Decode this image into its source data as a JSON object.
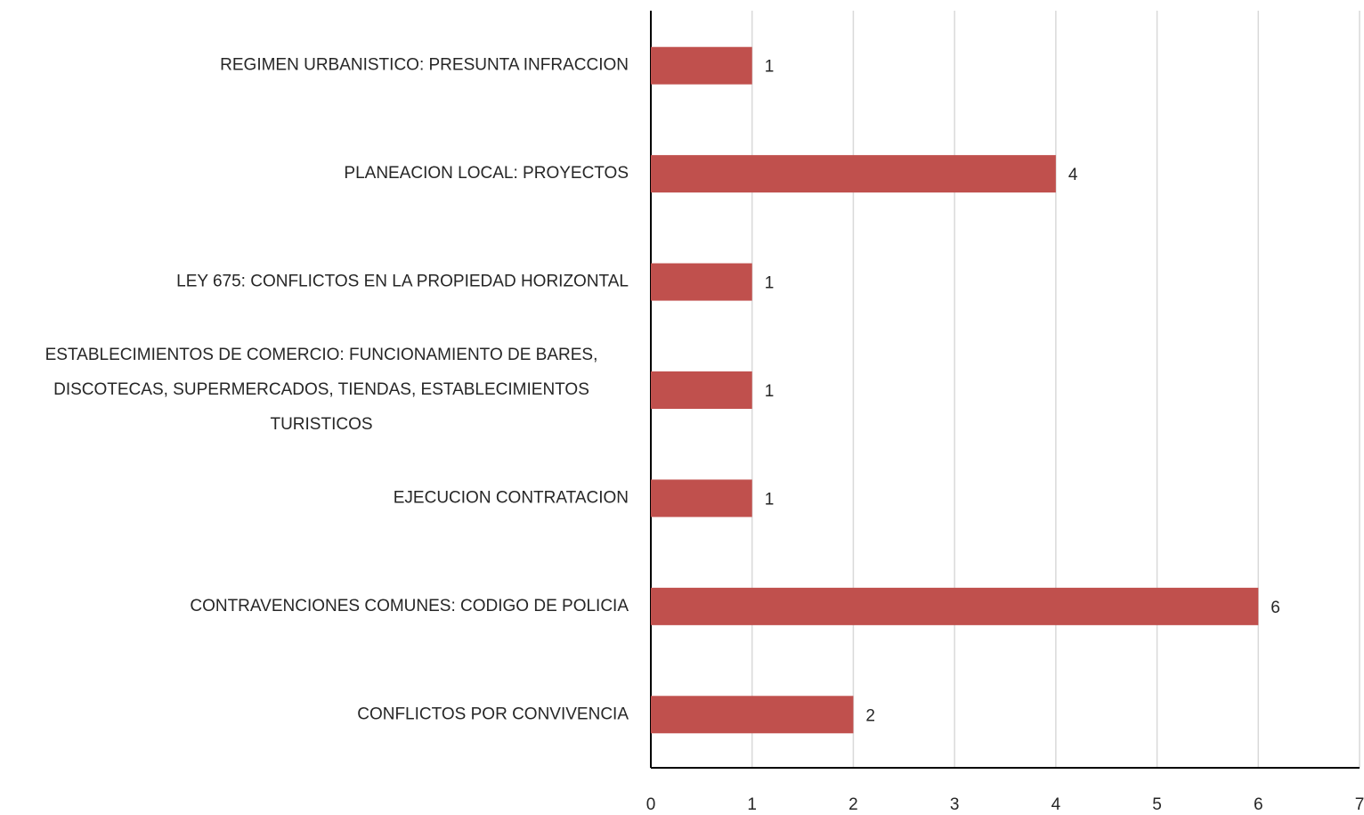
{
  "chart_data": {
    "type": "bar",
    "orientation": "horizontal",
    "categories": [
      "REGIMEN URBANISTICO: PRESUNTA INFRACCION",
      "PLANEACION LOCAL: PROYECTOS",
      "LEY 675: CONFLICTOS EN LA PROPIEDAD HORIZONTAL",
      "ESTABLECIMIENTOS DE COMERCIO: FUNCIONAMIENTO DE BARES, DISCOTECAS, SUPERMERCADOS, TIENDAS, ESTABLECIMIENTOS TURISTICOS",
      "EJECUCION CONTRATACION",
      "CONTRAVENCIONES COMUNES: CODIGO DE POLICIA",
      "CONFLICTOS POR CONVIVENCIA"
    ],
    "values": [
      1,
      4,
      1,
      1,
      1,
      6,
      2
    ],
    "color": "#c0504d",
    "xlim": [
      0,
      7
    ],
    "xticks": [
      0,
      1,
      2,
      3,
      4,
      5,
      6,
      7
    ],
    "grid": true
  }
}
